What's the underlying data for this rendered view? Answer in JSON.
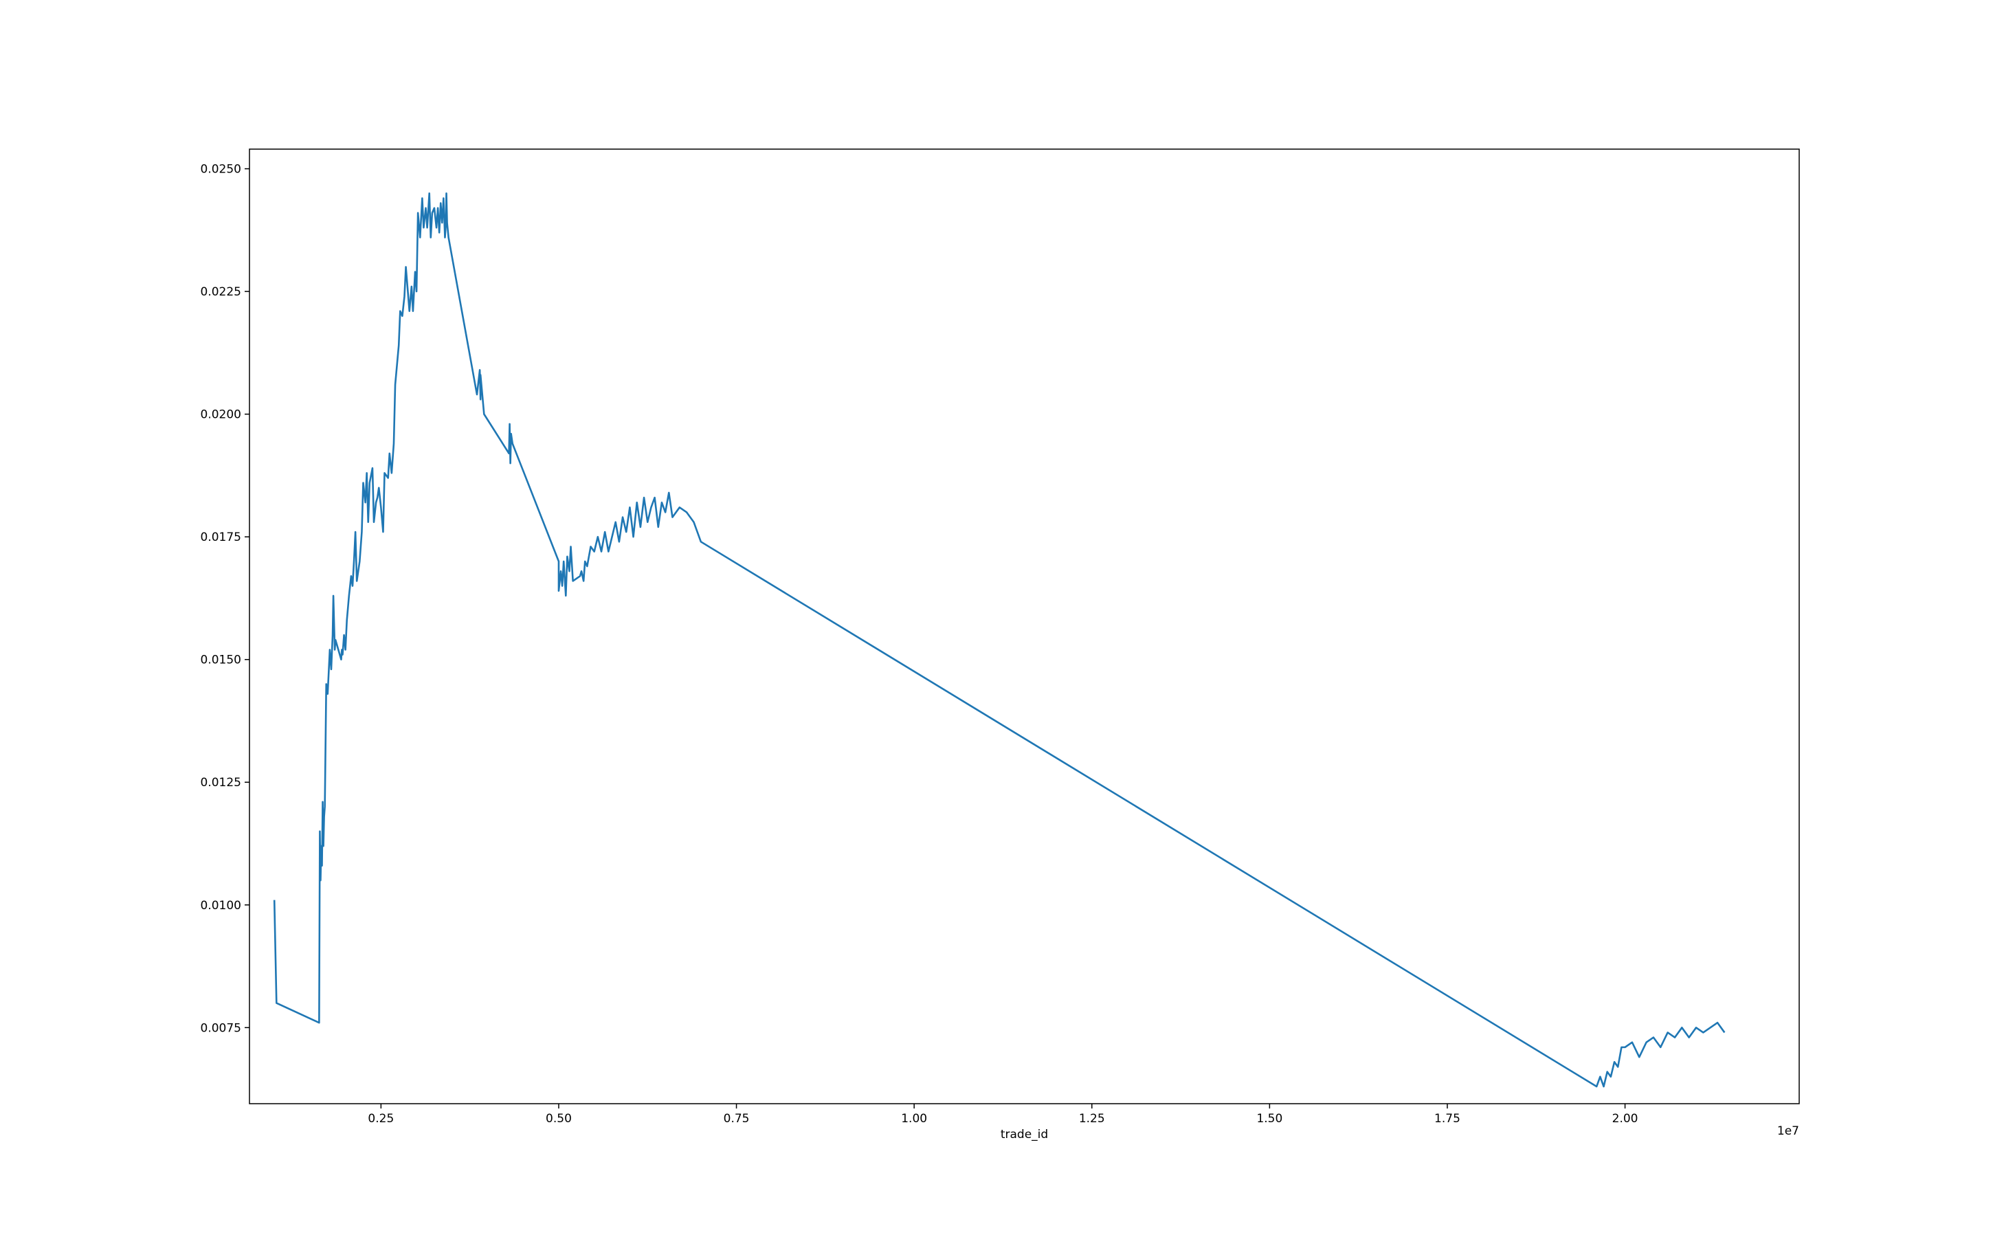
{
  "chart_data": {
    "type": "line",
    "title": "",
    "xlabel": "trade_id",
    "ylabel": "",
    "x_offset_label": "1e7",
    "xlim": [
      0.065,
      2.245
    ],
    "ylim": [
      0.00595,
      0.0254
    ],
    "x_tick_labels": [
      "0.25",
      "0.50",
      "0.75",
      "1.00",
      "1.25",
      "1.50",
      "1.75",
      "2.00"
    ],
    "y_tick_labels": [
      "0.0075",
      "0.0100",
      "0.0125",
      "0.0150",
      "0.0175",
      "0.0200",
      "0.0225",
      "0.0250"
    ],
    "grid": false,
    "legend": "none",
    "line_color": "#1f77b4",
    "series": [
      {
        "x_scale": "1e7",
        "x": [
          0.1,
          0.103,
          0.163,
          0.164,
          0.165,
          0.166,
          0.167,
          0.168,
          0.169,
          0.17,
          0.171,
          0.173,
          0.175,
          0.178,
          0.18,
          0.182,
          0.183,
          0.185,
          0.186,
          0.188,
          0.19,
          0.192,
          0.194,
          0.195,
          0.196,
          0.198,
          0.2,
          0.202,
          0.205,
          0.208,
          0.21,
          0.212,
          0.214,
          0.216,
          0.218,
          0.22,
          0.223,
          0.225,
          0.228,
          0.23,
          0.232,
          0.234,
          0.238,
          0.24,
          0.243,
          0.245,
          0.247,
          0.25,
          0.253,
          0.255,
          0.26,
          0.262,
          0.265,
          0.268,
          0.27,
          0.275,
          0.277,
          0.28,
          0.283,
          0.285,
          0.29,
          0.293,
          0.295,
          0.298,
          0.3,
          0.302,
          0.305,
          0.308,
          0.31,
          0.313,
          0.315,
          0.318,
          0.32,
          0.322,
          0.325,
          0.328,
          0.33,
          0.332,
          0.334,
          0.336,
          0.338,
          0.34,
          0.341,
          0.342,
          0.343,
          0.345,
          0.385,
          0.389,
          0.39,
          0.39,
          0.395,
          0.43,
          0.431,
          0.432,
          0.433,
          0.435,
          0.5,
          0.5,
          0.503,
          0.505,
          0.507,
          0.51,
          0.512,
          0.515,
          0.517,
          0.52,
          0.53,
          0.532,
          0.535,
          0.537,
          0.54,
          0.545,
          0.55,
          0.555,
          0.56,
          0.565,
          0.57,
          0.575,
          0.58,
          0.585,
          0.59,
          0.595,
          0.6,
          0.605,
          0.61,
          0.615,
          0.62,
          0.625,
          0.63,
          0.635,
          0.64,
          0.645,
          0.65,
          0.655,
          0.66,
          0.67,
          0.68,
          0.69,
          0.7,
          1.96,
          1.965,
          1.97,
          1.975,
          1.98,
          1.985,
          1.99,
          1.995,
          2.0,
          2.01,
          2.02,
          2.03,
          2.04,
          2.05,
          2.06,
          2.07,
          2.08,
          2.09,
          2.1,
          2.11,
          2.12,
          2.13,
          2.14
        ],
        "y": [
          0.0101,
          0.008,
          0.0076,
          0.0115,
          0.0105,
          0.0112,
          0.0108,
          0.0121,
          0.0112,
          0.0118,
          0.012,
          0.0145,
          0.0143,
          0.0152,
          0.0148,
          0.0155,
          0.0163,
          0.0152,
          0.0154,
          0.0153,
          0.0152,
          0.0151,
          0.015,
          0.0152,
          0.0151,
          0.0155,
          0.0152,
          0.0158,
          0.0163,
          0.0167,
          0.0165,
          0.017,
          0.0176,
          0.0166,
          0.0168,
          0.017,
          0.0176,
          0.0186,
          0.0182,
          0.0188,
          0.0178,
          0.0186,
          0.0189,
          0.0178,
          0.0182,
          0.0183,
          0.0185,
          0.0181,
          0.0176,
          0.0188,
          0.0187,
          0.0192,
          0.0188,
          0.0194,
          0.0206,
          0.0214,
          0.0221,
          0.022,
          0.0224,
          0.023,
          0.0221,
          0.0226,
          0.0221,
          0.0229,
          0.0225,
          0.0241,
          0.0236,
          0.0244,
          0.0238,
          0.0242,
          0.0238,
          0.0245,
          0.0236,
          0.0241,
          0.0242,
          0.0238,
          0.0242,
          0.0237,
          0.0243,
          0.0239,
          0.0244,
          0.0236,
          0.0238,
          0.0245,
          0.0239,
          0.0236,
          0.0204,
          0.0209,
          0.0203,
          0.0208,
          0.02,
          0.0192,
          0.0198,
          0.019,
          0.0196,
          0.0194,
          0.017,
          0.0164,
          0.0168,
          0.0165,
          0.017,
          0.0163,
          0.0171,
          0.0168,
          0.0173,
          0.0166,
          0.0167,
          0.0168,
          0.0166,
          0.017,
          0.0169,
          0.0173,
          0.0172,
          0.0175,
          0.0172,
          0.0176,
          0.0172,
          0.0175,
          0.0178,
          0.0174,
          0.0179,
          0.0176,
          0.0181,
          0.0175,
          0.0182,
          0.0177,
          0.0183,
          0.0178,
          0.0181,
          0.0183,
          0.0177,
          0.0182,
          0.018,
          0.0184,
          0.0179,
          0.0181,
          0.018,
          0.0178,
          0.0174,
          0.0063,
          0.0065,
          0.0063,
          0.0066,
          0.0065,
          0.0068,
          0.0067,
          0.0071,
          0.0071,
          0.0072,
          0.0069,
          0.0072,
          0.0073,
          0.0071,
          0.0074,
          0.0073,
          0.0075,
          0.0073,
          0.0075,
          0.0074,
          0.0075,
          0.0076,
          0.0074
        ]
      }
    ]
  }
}
